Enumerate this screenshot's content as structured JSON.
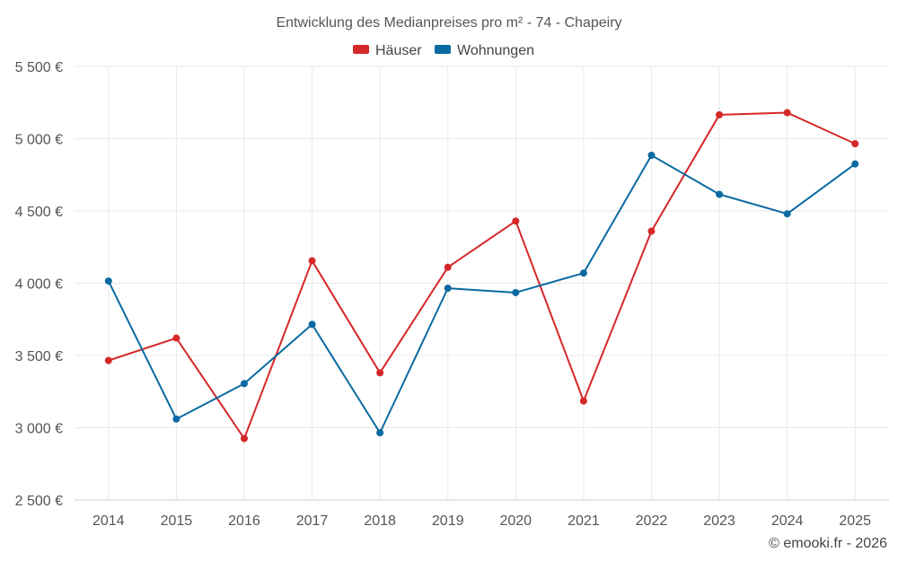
{
  "chart_data": {
    "type": "line",
    "title": "Entwicklung des Medianpreises pro m² - 74 - Chapeiry",
    "categories": [
      "2014",
      "2015",
      "2016",
      "2017",
      "2018",
      "2019",
      "2020",
      "2021",
      "2022",
      "2023",
      "2024",
      "2025"
    ],
    "series": [
      {
        "name": "Häuser",
        "color": "#d62728",
        "values": [
          3465,
          3620,
          2925,
          4155,
          3380,
          4110,
          4430,
          3185,
          4360,
          5165,
          5180,
          4965
        ]
      },
      {
        "name": "Wohnungen",
        "color": "#0a6aa1",
        "values": [
          4015,
          3060,
          3305,
          3715,
          2965,
          3965,
          3935,
          4070,
          4885,
          4615,
          4480,
          4825
        ]
      }
    ],
    "ylim": [
      2500,
      5500
    ],
    "yticks": [
      {
        "value": 2500,
        "label": "2 500 €"
      },
      {
        "value": 3000,
        "label": "3 000 €"
      },
      {
        "value": 3500,
        "label": "3 500 €"
      },
      {
        "value": 4000,
        "label": "4 000 €"
      },
      {
        "value": 4500,
        "label": "4 500 €"
      },
      {
        "value": 5000,
        "label": "5 000 €"
      },
      {
        "value": 5500,
        "label": "5 500 €"
      }
    ],
    "xlabel": "",
    "ylabel": "",
    "grid": true,
    "legend_position": "top-center",
    "credit": "© emooki.fr - 2026"
  }
}
